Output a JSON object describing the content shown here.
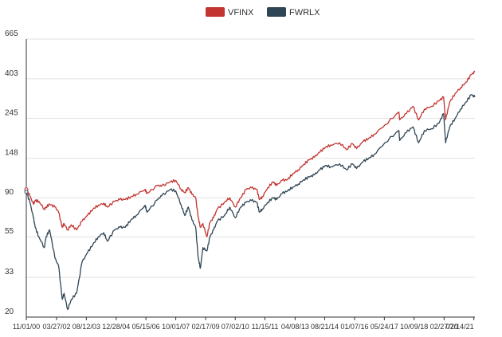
{
  "chart_data": {
    "type": "line",
    "title": "",
    "xlabel": "",
    "ylabel": "",
    "y_scale": "log",
    "ylim": [
      20,
      665
    ],
    "y_ticks": [
      "20",
      "33",
      "55",
      "90",
      "148",
      "245",
      "403",
      "665"
    ],
    "x_tick_labels": [
      "11/01/00",
      "03/27/02",
      "08/12/03",
      "12/28/04",
      "05/15/06",
      "10/01/07",
      "02/17/09",
      "07/02/10",
      "11/15/11",
      "04/08/13",
      "08/21/14",
      "01/07/16",
      "05/24/17",
      "10/09/18",
      "02/27/20",
      "07/14/21"
    ],
    "x_range": [
      "11/01/00",
      "08/2021"
    ],
    "grid": "horizontal",
    "legend_position": "top-center",
    "series": [
      {
        "name": "VFINX",
        "color": "#c23531",
        "x": [
          "11/01/00",
          "01/01/01",
          "03/01/01",
          "04/01/01",
          "06/01/01",
          "09/01/01",
          "10/01/01",
          "12/01/01",
          "03/01/02",
          "05/01/02",
          "07/01/02",
          "08/01/02",
          "10/01/02",
          "12/01/02",
          "03/01/03",
          "06/01/03",
          "09/01/03",
          "12/01/03",
          "03/01/04",
          "06/01/04",
          "08/01/04",
          "12/01/04",
          "03/01/05",
          "06/01/05",
          "09/01/05",
          "12/01/05",
          "05/01/06",
          "06/01/06",
          "12/01/06",
          "02/01/07",
          "07/01/07",
          "10/01/07",
          "01/01/08",
          "03/01/08",
          "05/01/08",
          "07/01/08",
          "09/01/08",
          "10/15/08",
          "11/20/08",
          "01/01/09",
          "03/09/09",
          "05/01/09",
          "07/01/09",
          "09/01/09",
          "01/01/10",
          "04/01/10",
          "07/01/10",
          "10/01/10",
          "01/01/11",
          "04/01/11",
          "07/01/11",
          "08/15/11",
          "10/01/11",
          "01/01/12",
          "04/01/12",
          "06/01/12",
          "09/01/12",
          "12/01/12",
          "03/01/13",
          "06/01/13",
          "09/01/13",
          "12/01/13",
          "03/01/14",
          "06/01/14",
          "09/01/14",
          "12/01/14",
          "05/01/15",
          "08/25/15",
          "12/01/15",
          "02/10/16",
          "06/01/16",
          "09/01/16",
          "12/01/16",
          "06/01/17",
          "01/25/18",
          "02/08/18",
          "06/01/18",
          "09/20/18",
          "12/24/18",
          "04/01/19",
          "08/01/19",
          "12/01/19",
          "02/19/20",
          "03/23/20",
          "06/01/20",
          "09/01/20",
          "12/01/20",
          "03/01/21",
          "06/01/21",
          "08/01/21"
        ],
        "values": [
          100,
          92,
          83,
          87,
          86,
          78,
          80,
          83,
          80,
          75,
          62,
          65,
          60,
          64,
          60,
          67,
          72,
          78,
          82,
          84,
          80,
          86,
          88,
          88,
          91,
          94,
          100,
          95,
          105,
          104,
          110,
          112,
          100,
          96,
          102,
          94,
          90,
          70,
          62,
          65,
          55,
          66,
          70,
          78,
          85,
          90,
          80,
          90,
          100,
          102,
          100,
          88,
          91,
          102,
          110,
          105,
          112,
          113,
          122,
          128,
          137,
          145,
          150,
          160,
          170,
          175,
          180,
          165,
          178,
          167,
          183,
          190,
          200,
          225,
          265,
          240,
          260,
          285,
          240,
          275,
          285,
          305,
          320,
          240,
          300,
          335,
          360,
          385,
          425,
          440
        ]
      },
      {
        "name": "FWRLX",
        "color": "#2f4554",
        "x": [
          "11/01/00",
          "01/01/01",
          "03/01/01",
          "04/01/01",
          "06/01/01",
          "09/01/01",
          "10/01/01",
          "12/01/01",
          "03/01/02",
          "05/01/02",
          "07/01/02",
          "08/01/02",
          "10/01/02",
          "12/01/02",
          "03/01/03",
          "06/01/03",
          "09/01/03",
          "12/01/03",
          "03/01/04",
          "06/01/04",
          "08/01/04",
          "12/01/04",
          "03/01/05",
          "06/01/05",
          "09/01/05",
          "12/01/05",
          "05/01/06",
          "06/01/06",
          "12/01/06",
          "02/01/07",
          "07/01/07",
          "10/01/07",
          "01/01/08",
          "03/01/08",
          "05/01/08",
          "07/01/08",
          "09/01/08",
          "10/15/08",
          "11/20/08",
          "01/01/09",
          "03/09/09",
          "05/01/09",
          "07/01/09",
          "09/01/09",
          "01/01/10",
          "04/01/10",
          "07/01/10",
          "10/01/10",
          "01/01/11",
          "04/01/11",
          "07/01/11",
          "08/15/11",
          "10/01/11",
          "01/01/12",
          "04/01/12",
          "06/01/12",
          "09/01/12",
          "12/01/12",
          "03/01/13",
          "06/01/13",
          "09/01/13",
          "12/01/13",
          "03/01/14",
          "06/01/14",
          "09/01/14",
          "12/01/14",
          "05/01/15",
          "08/25/15",
          "12/01/15",
          "02/10/16",
          "06/01/16",
          "09/01/16",
          "12/01/16",
          "06/01/17",
          "01/25/18",
          "02/08/18",
          "06/01/18",
          "09/20/18",
          "12/24/18",
          "04/01/19",
          "08/01/19",
          "12/01/19",
          "02/19/20",
          "03/23/20",
          "06/01/20",
          "09/01/20",
          "12/01/20",
          "03/01/21",
          "06/01/21",
          "08/01/21"
        ],
        "values": [
          97,
          85,
          70,
          62,
          55,
          48,
          55,
          60,
          42,
          38,
          25,
          27,
          22,
          25,
          27,
          40,
          45,
          50,
          55,
          58,
          52,
          60,
          62,
          62,
          68,
          72,
          82,
          75,
          88,
          92,
          100,
          98,
          82,
          72,
          80,
          68,
          62,
          42,
          37,
          48,
          46,
          55,
          60,
          67,
          72,
          80,
          70,
          80,
          85,
          87,
          85,
          75,
          78,
          85,
          90,
          88,
          95,
          98,
          103,
          107,
          113,
          117,
          120,
          128,
          135,
          133,
          138,
          128,
          138,
          130,
          142,
          148,
          155,
          180,
          210,
          185,
          205,
          220,
          180,
          210,
          215,
          230,
          260,
          180,
          220,
          245,
          275,
          300,
          330,
          320
        ]
      }
    ]
  }
}
